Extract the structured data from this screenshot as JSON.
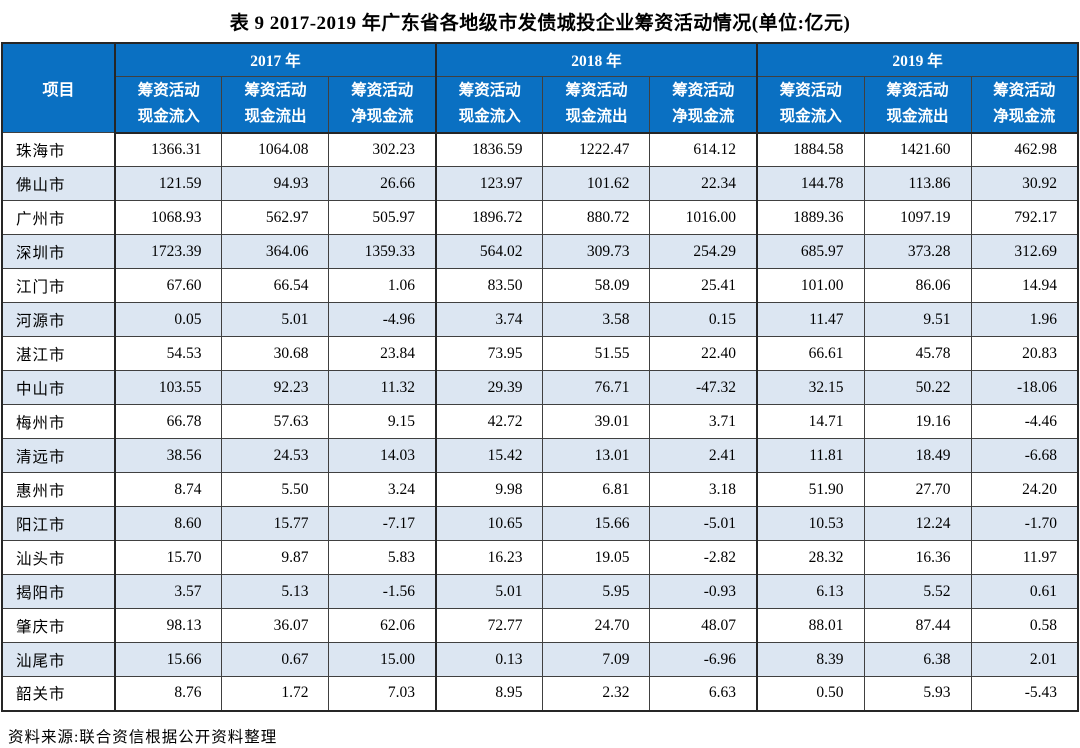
{
  "title": "表 9  2017-2019 年广东省各地级市发债城投企业筹资活动情况(单位:亿元)",
  "source_note": "资料来源:联合资信根据公开资料整理",
  "colors": {
    "header_bg": "#0a70c2",
    "header_text": "#ffffff",
    "stripe_bg": "#dce6f2",
    "border": "#404040"
  },
  "table": {
    "corner_label": "项目",
    "year_groups": [
      "2017 年",
      "2018 年",
      "2019 年"
    ],
    "sub_headers": [
      "筹资活动\n现金流入",
      "筹资活动\n现金流出",
      "筹资活动\n净现金流"
    ],
    "rows": [
      {
        "city": "珠海市",
        "values": [
          "1366.31",
          "1064.08",
          "302.23",
          "1836.59",
          "1222.47",
          "614.12",
          "1884.58",
          "1421.60",
          "462.98"
        ]
      },
      {
        "city": "佛山市",
        "values": [
          "121.59",
          "94.93",
          "26.66",
          "123.97",
          "101.62",
          "22.34",
          "144.78",
          "113.86",
          "30.92"
        ]
      },
      {
        "city": "广州市",
        "values": [
          "1068.93",
          "562.97",
          "505.97",
          "1896.72",
          "880.72",
          "1016.00",
          "1889.36",
          "1097.19",
          "792.17"
        ]
      },
      {
        "city": "深圳市",
        "values": [
          "1723.39",
          "364.06",
          "1359.33",
          "564.02",
          "309.73",
          "254.29",
          "685.97",
          "373.28",
          "312.69"
        ]
      },
      {
        "city": "江门市",
        "values": [
          "67.60",
          "66.54",
          "1.06",
          "83.50",
          "58.09",
          "25.41",
          "101.00",
          "86.06",
          "14.94"
        ]
      },
      {
        "city": "河源市",
        "values": [
          "0.05",
          "5.01",
          "-4.96",
          "3.74",
          "3.58",
          "0.15",
          "11.47",
          "9.51",
          "1.96"
        ]
      },
      {
        "city": "湛江市",
        "values": [
          "54.53",
          "30.68",
          "23.84",
          "73.95",
          "51.55",
          "22.40",
          "66.61",
          "45.78",
          "20.83"
        ]
      },
      {
        "city": "中山市",
        "values": [
          "103.55",
          "92.23",
          "11.32",
          "29.39",
          "76.71",
          "-47.32",
          "32.15",
          "50.22",
          "-18.06"
        ]
      },
      {
        "city": "梅州市",
        "values": [
          "66.78",
          "57.63",
          "9.15",
          "42.72",
          "39.01",
          "3.71",
          "14.71",
          "19.16",
          "-4.46"
        ]
      },
      {
        "city": "清远市",
        "values": [
          "38.56",
          "24.53",
          "14.03",
          "15.42",
          "13.01",
          "2.41",
          "11.81",
          "18.49",
          "-6.68"
        ]
      },
      {
        "city": "惠州市",
        "values": [
          "8.74",
          "5.50",
          "3.24",
          "9.98",
          "6.81",
          "3.18",
          "51.90",
          "27.70",
          "24.20"
        ]
      },
      {
        "city": "阳江市",
        "values": [
          "8.60",
          "15.77",
          "-7.17",
          "10.65",
          "15.66",
          "-5.01",
          "10.53",
          "12.24",
          "-1.70"
        ]
      },
      {
        "city": "汕头市",
        "values": [
          "15.70",
          "9.87",
          "5.83",
          "16.23",
          "19.05",
          "-2.82",
          "28.32",
          "16.36",
          "11.97"
        ]
      },
      {
        "city": "揭阳市",
        "values": [
          "3.57",
          "5.13",
          "-1.56",
          "5.01",
          "5.95",
          "-0.93",
          "6.13",
          "5.52",
          "0.61"
        ]
      },
      {
        "city": "肇庆市",
        "values": [
          "98.13",
          "36.07",
          "62.06",
          "72.77",
          "24.70",
          "48.07",
          "88.01",
          "87.44",
          "0.58"
        ]
      },
      {
        "city": "汕尾市",
        "values": [
          "15.66",
          "0.67",
          "15.00",
          "0.13",
          "7.09",
          "-6.96",
          "8.39",
          "6.38",
          "2.01"
        ]
      },
      {
        "city": "韶关市",
        "values": [
          "8.76",
          "1.72",
          "7.03",
          "8.95",
          "2.32",
          "6.63",
          "0.50",
          "5.93",
          "-5.43"
        ]
      }
    ]
  }
}
